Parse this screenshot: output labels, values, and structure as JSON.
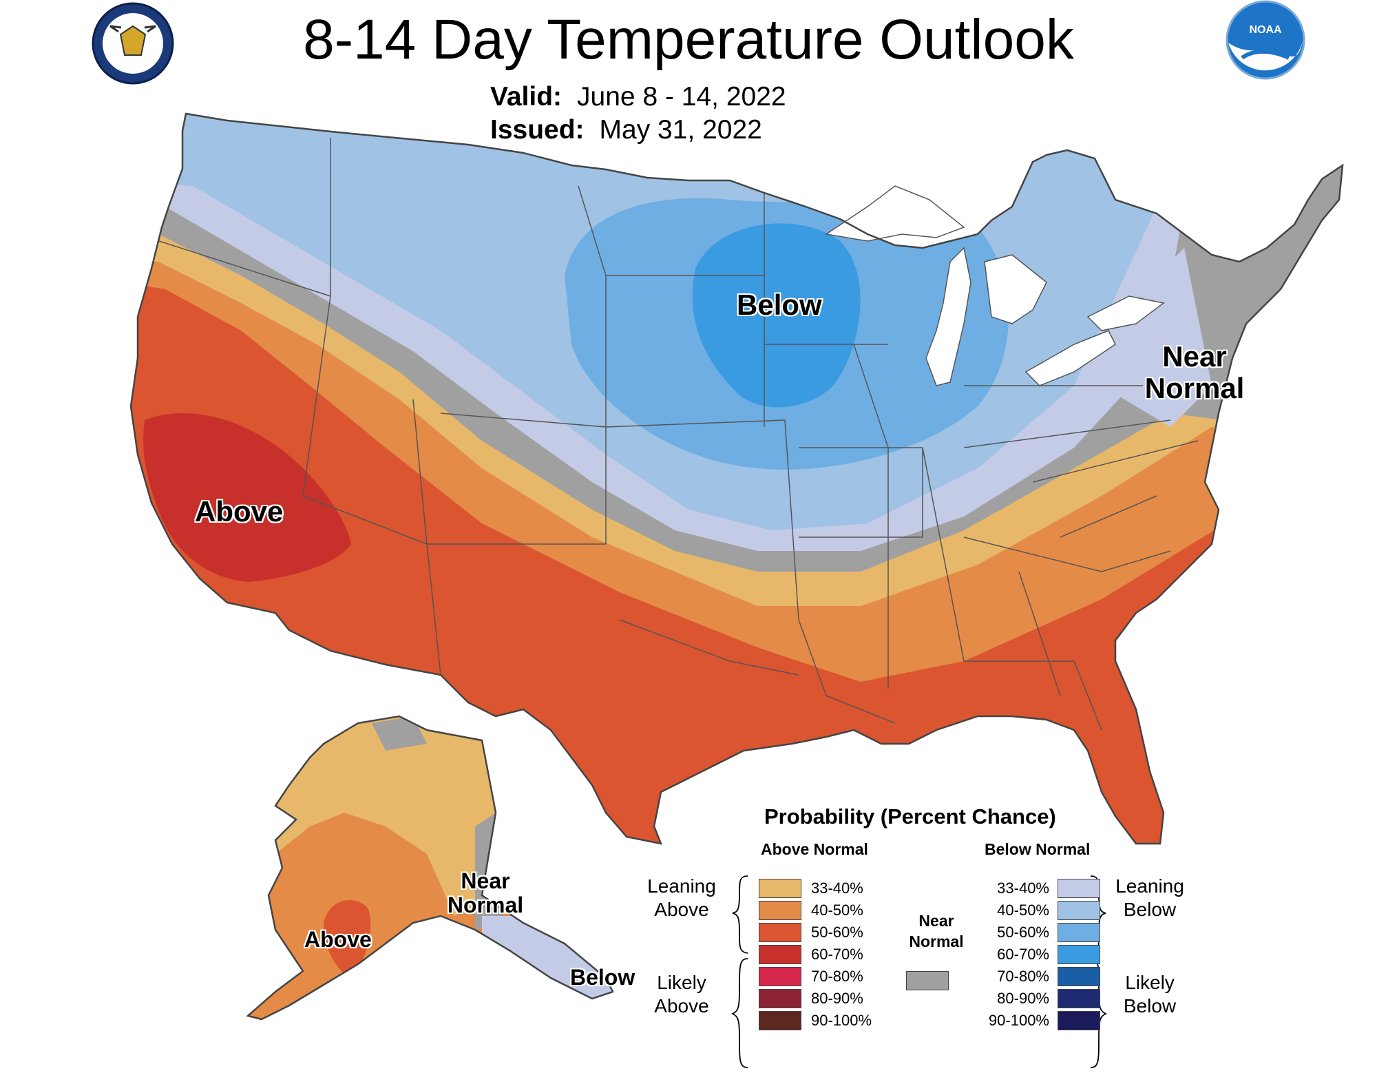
{
  "header": {
    "title": "8-14 Day Temperature Outlook",
    "valid_label": "Valid:",
    "valid_value": "June 8 - 14, 2022",
    "issued_label": "Issued:",
    "issued_value": "May 31, 2022"
  },
  "logos": {
    "left": "seal-icon",
    "left_text": "DEPARTMENT OF COMMERCE UNITED STATES OF AMERICA",
    "right": "noaa-logo-icon",
    "right_text": "NOAA"
  },
  "map_labels": {
    "conus_below": "Below",
    "conus_above": "Above",
    "conus_near_normal": "Near\nNormal",
    "alaska_near_normal": "Near\nNormal",
    "alaska_above": "Above",
    "alaska_below": "Below"
  },
  "colors": {
    "above_33_40": "#e8b86a",
    "above_40_50": "#e48b48",
    "above_50_60": "#db5530",
    "above_60_70": "#c8302b",
    "above_70_80": "#d6284a",
    "above_80_90": "#8c2334",
    "above_90_100": "#5c2820",
    "below_33_40": "#c4cbe6",
    "below_40_50": "#9fc2e5",
    "below_50_60": "#6faee3",
    "below_60_70": "#3a9be0",
    "below_70_80": "#1a5ea6",
    "below_80_90": "#1e2a72",
    "below_90_100": "#1b1a5a",
    "near_normal": "#a0a0a0"
  },
  "legend": {
    "title": "Probability (Percent Chance)",
    "above_head": "Above Normal",
    "below_head": "Below Normal",
    "near_normal": "Near\nNormal",
    "leaning_above": "Leaning\nAbove",
    "likely_above": "Likely\nAbove",
    "leaning_below": "Leaning\nBelow",
    "likely_below": "Likely\nBelow",
    "above_rows": [
      {
        "label": "33-40%",
        "color": "#e8b86a"
      },
      {
        "label": "40-50%",
        "color": "#e48b48"
      },
      {
        "label": "50-60%",
        "color": "#db5530"
      },
      {
        "label": "60-70%",
        "color": "#c8302b"
      },
      {
        "label": "70-80%",
        "color": "#d6284a"
      },
      {
        "label": "80-90%",
        "color": "#8c2334"
      },
      {
        "label": "90-100%",
        "color": "#5c2820"
      }
    ],
    "below_rows": [
      {
        "label": "33-40%",
        "color": "#c4cbe6"
      },
      {
        "label": "40-50%",
        "color": "#9fc2e5"
      },
      {
        "label": "50-60%",
        "color": "#6faee3"
      },
      {
        "label": "60-70%",
        "color": "#3a9be0"
      },
      {
        "label": "70-80%",
        "color": "#1a5ea6"
      },
      {
        "label": "80-90%",
        "color": "#1e2a72"
      },
      {
        "label": "90-100%",
        "color": "#1b1a5a"
      }
    ]
  }
}
